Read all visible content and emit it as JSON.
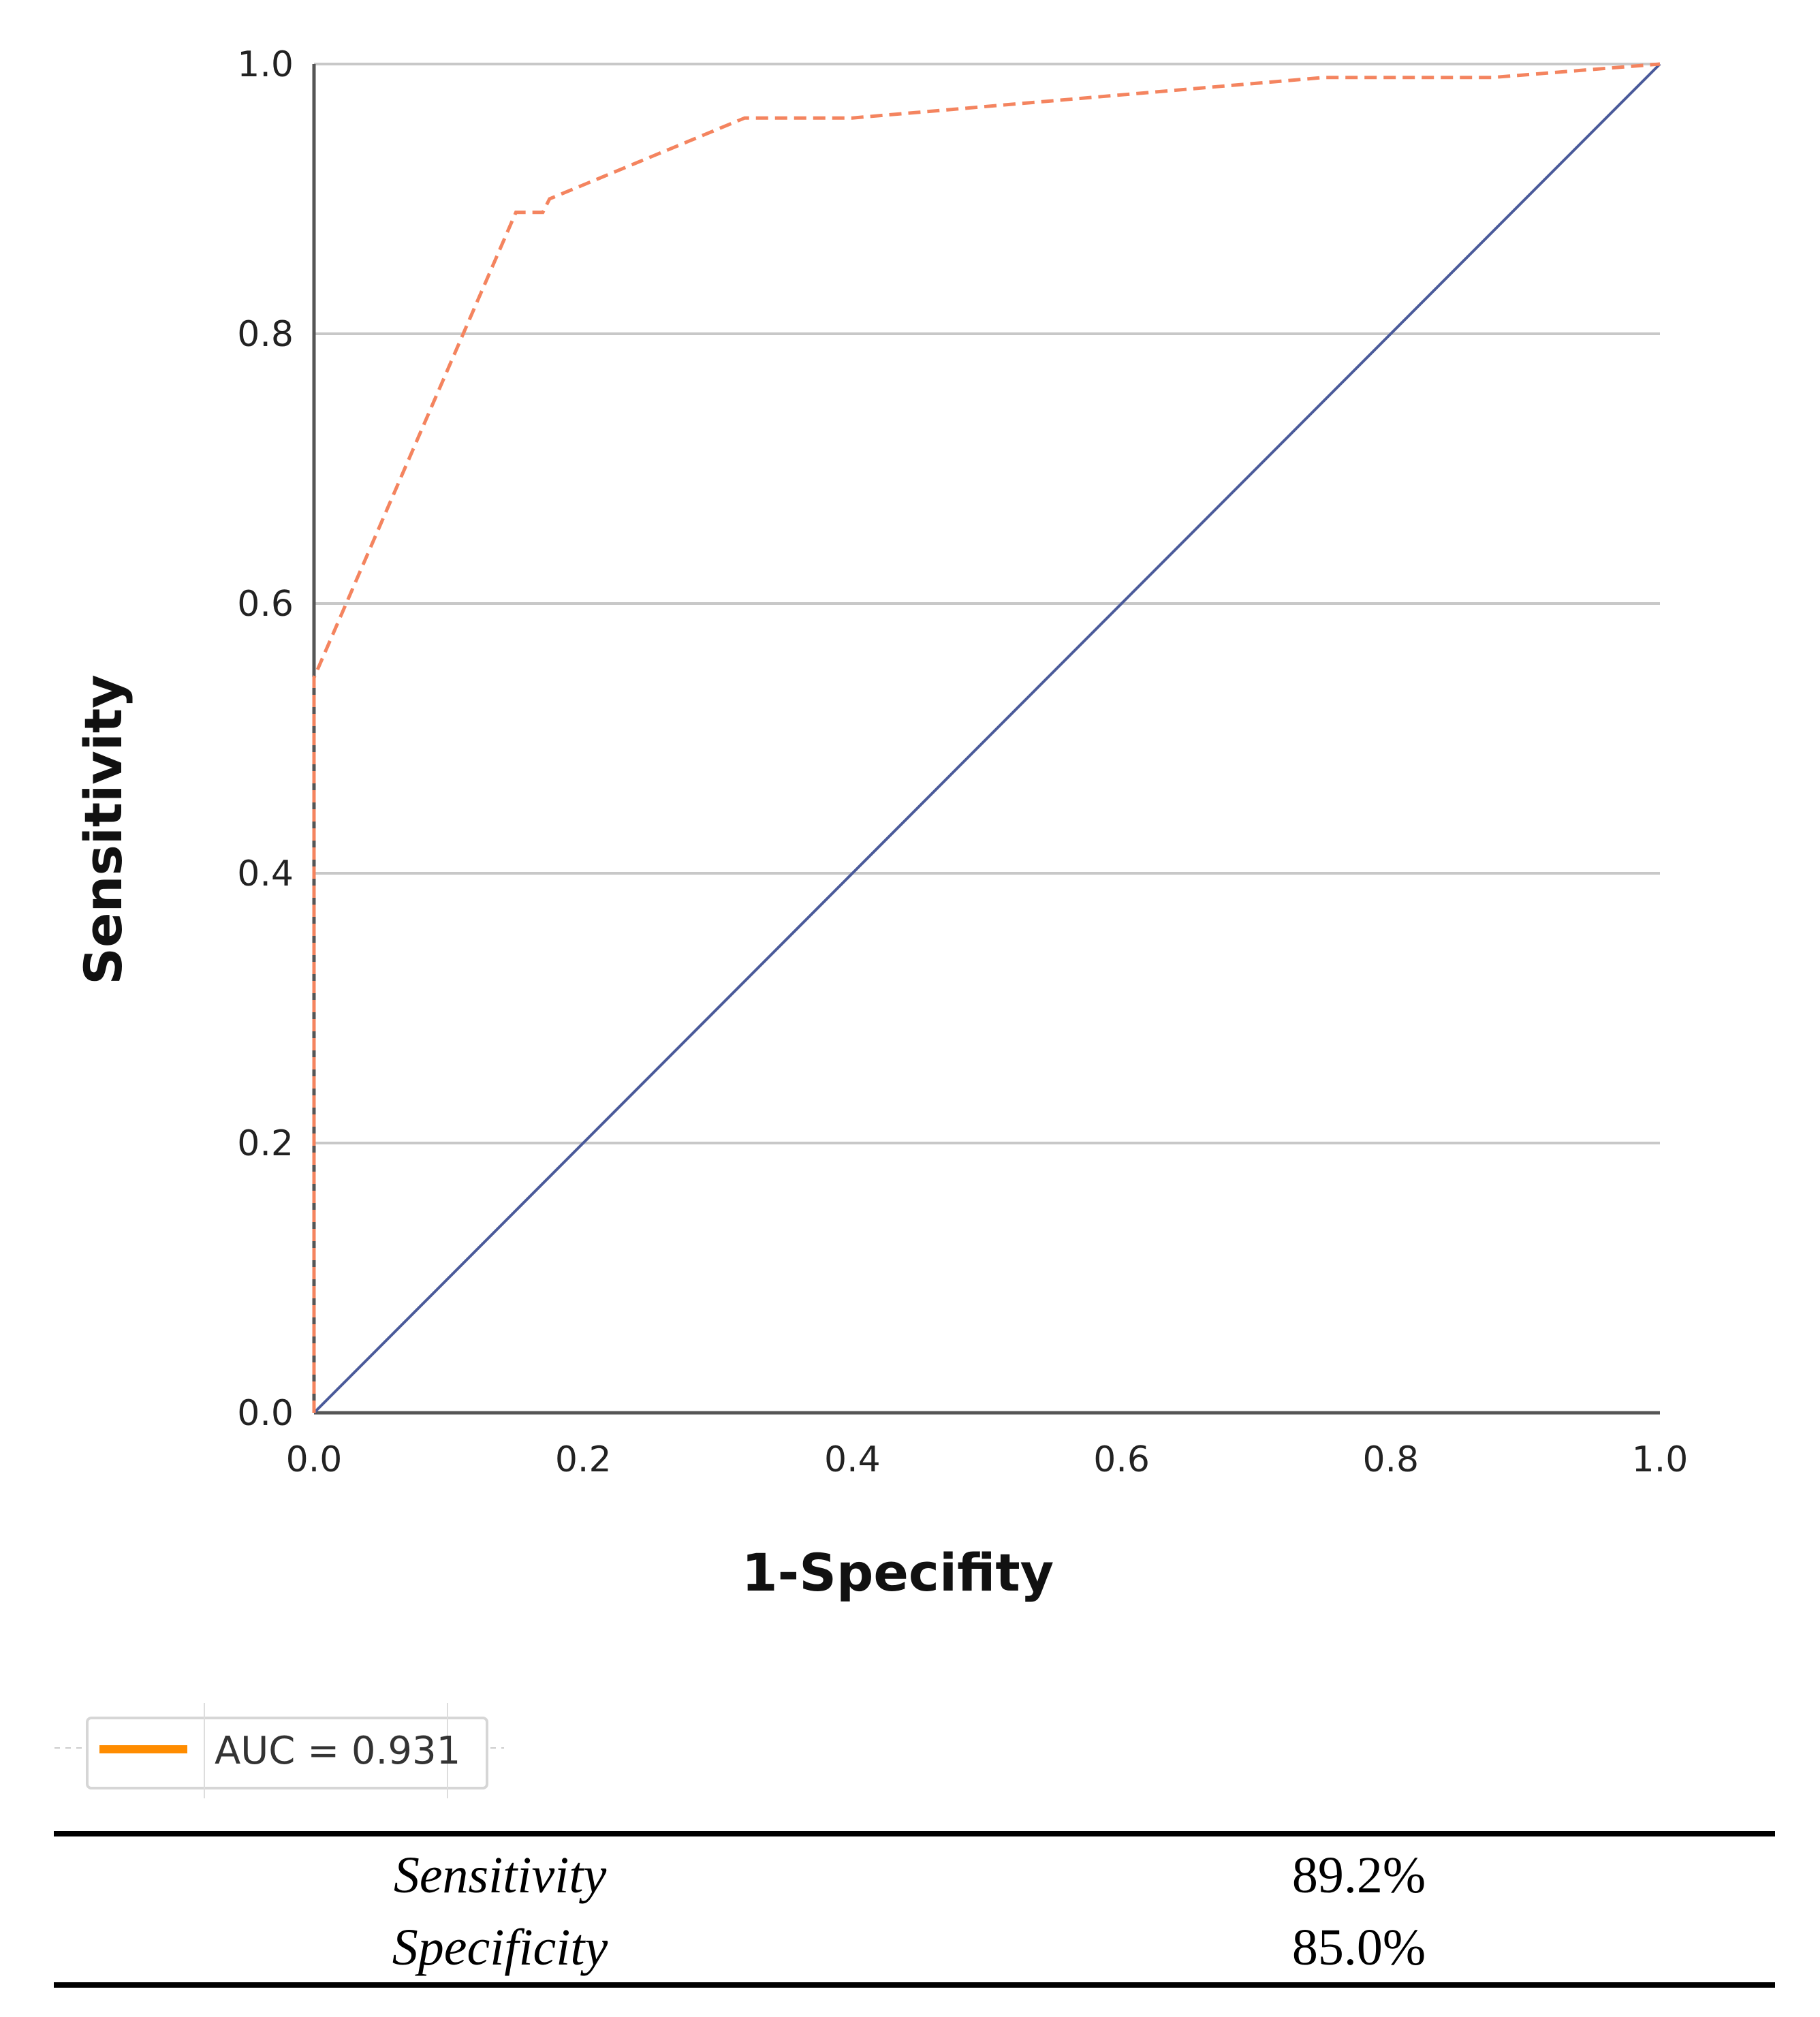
{
  "chart_data": {
    "type": "line",
    "title": "",
    "xlabel": "1-Specifity",
    "ylabel": "Sensitivity",
    "xlim": [
      0,
      1
    ],
    "ylim": [
      0,
      1
    ],
    "xticks": [
      "0.0",
      "0.2",
      "0.4",
      "0.6",
      "0.8",
      "1.0"
    ],
    "yticks": [
      "0.0",
      "0.2",
      "0.4",
      "0.6",
      "0.8",
      "1.0"
    ],
    "grid": "horizontal",
    "legend_placement": "bottom-left",
    "series": [
      {
        "name": "AUC = 0.931",
        "color": "#f4845f",
        "legend_color": "#ff8c00",
        "style": "dashed",
        "x": [
          0,
          0,
          0.15,
          0.17,
          0.175,
          0.32,
          0.4,
          0.75,
          0.875,
          1.0
        ],
        "y": [
          0,
          0.545,
          0.89,
          0.89,
          0.9,
          0.96,
          0.96,
          0.99,
          0.99,
          1.0
        ]
      },
      {
        "color": "#4a5a9a",
        "style": "solid",
        "x": [
          0,
          1
        ],
        "y": [
          0,
          1
        ]
      }
    ]
  },
  "table": {
    "rows": [
      {
        "label": "Sensitivity",
        "value": "89.2%"
      },
      {
        "label": "Specificity",
        "value": "85.0%"
      }
    ]
  }
}
